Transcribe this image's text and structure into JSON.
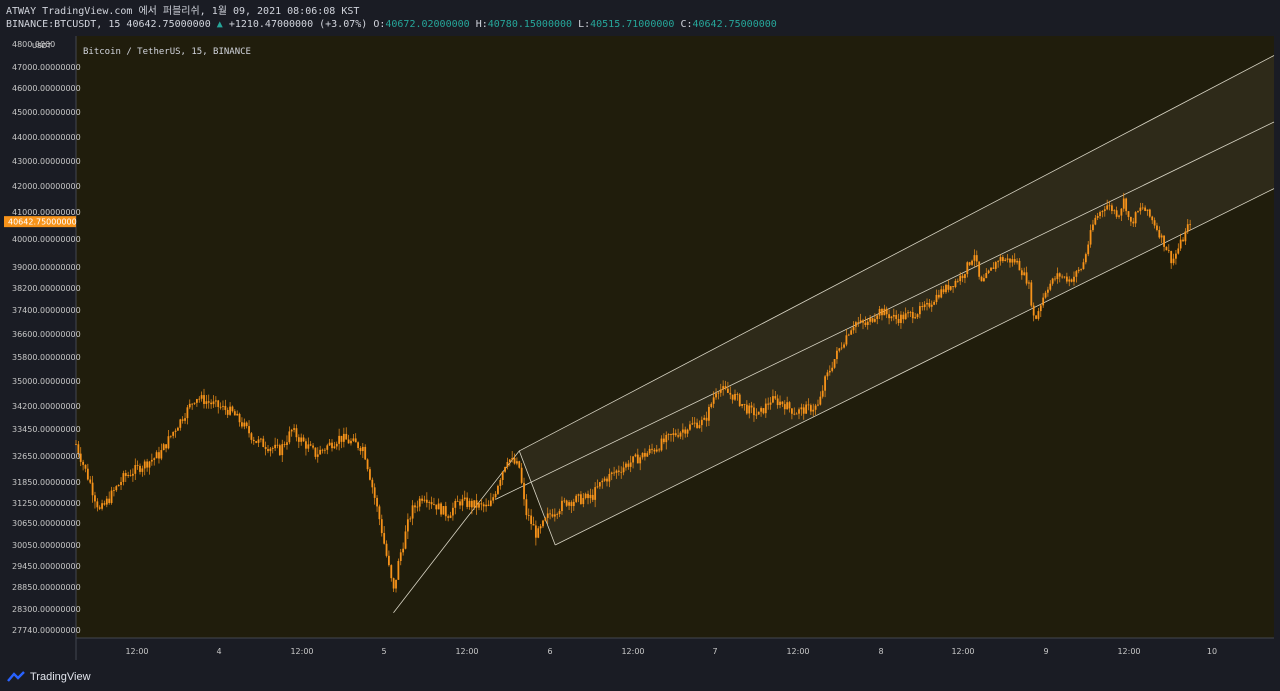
{
  "header": {
    "line1": "ATWAY TradingView.com 에서 퍼블리쉬, 1월 09, 2021 08:06:08 KST",
    "symbol": "BINANCE:BTCUSDT, 15",
    "last": "40642.75000000",
    "change_arrow": "▲",
    "change": "+1210.47000000 (+3.07%)",
    "o_label": "O:",
    "o": "40672.02000000",
    "h_label": "H:",
    "h": "40780.15000000",
    "l_label": "L:",
    "l": "40515.71000000",
    "c_label": "C:",
    "c": "40642.75000000"
  },
  "chart_title": "Bitcoin / TetherUS, 15, BINANCE",
  "footer": {
    "brand": "TradingView"
  },
  "colors": {
    "background": "#201d0c",
    "candle": "#f7931a",
    "channel_line": "#d8d4c4",
    "channel_fill": "#3a3524",
    "price_label_bg": "#f7931a"
  },
  "chart_data": {
    "type": "candlestick",
    "title": "Bitcoin / TetherUS, 15, BINANCE",
    "y_axis_unit": "USDT",
    "y_ticks": [
      "4800 0000",
      "47000.00000000",
      "46000.00000000",
      "45000.00000000",
      "44000.00000000",
      "43000.00000000",
      "42000.00000000",
      "41000.00000000",
      "40000.00000000",
      "39000.00000000",
      "38200.00000000",
      "37400.00000000",
      "36600.00000000",
      "35800.00000000",
      "35000.00000000",
      "34200.00000000",
      "33450.00000000",
      "32650.00000000",
      "31850.00000000",
      "31250.00000000",
      "30650.00000000",
      "30050.00000000",
      "29450.00000000",
      "28850.00000000",
      "28300.00000000",
      "27740.00000000"
    ],
    "x_ticks": [
      "12:00",
      "4",
      "12:00",
      "5",
      "12:00",
      "6",
      "12:00",
      "7",
      "12:00",
      "8",
      "12:00",
      "9",
      "12:00",
      "10"
    ],
    "current_price_label": "40642.75000000",
    "price_path": [
      {
        "t": 0.0,
        "p": 33000
      },
      {
        "t": 0.02,
        "p": 31000
      },
      {
        "t": 0.04,
        "p": 32000
      },
      {
        "t": 0.07,
        "p": 32700
      },
      {
        "t": 0.09,
        "p": 33900
      },
      {
        "t": 0.1,
        "p": 34500
      },
      {
        "t": 0.13,
        "p": 34000
      },
      {
        "t": 0.15,
        "p": 33100
      },
      {
        "t": 0.17,
        "p": 32800
      },
      {
        "t": 0.18,
        "p": 33400
      },
      {
        "t": 0.2,
        "p": 32700
      },
      {
        "t": 0.22,
        "p": 33200
      },
      {
        "t": 0.24,
        "p": 32900
      },
      {
        "t": 0.255,
        "p": 30500
      },
      {
        "t": 0.265,
        "p": 28700
      },
      {
        "t": 0.27,
        "p": 29700
      },
      {
        "t": 0.28,
        "p": 31000
      },
      {
        "t": 0.29,
        "p": 31500
      },
      {
        "t": 0.31,
        "p": 30900
      },
      {
        "t": 0.32,
        "p": 31300
      },
      {
        "t": 0.33,
        "p": 31200
      },
      {
        "t": 0.345,
        "p": 31100
      },
      {
        "t": 0.36,
        "p": 32600
      },
      {
        "t": 0.37,
        "p": 32300
      },
      {
        "t": 0.375,
        "p": 31000
      },
      {
        "t": 0.385,
        "p": 30300
      },
      {
        "t": 0.395,
        "p": 30900
      },
      {
        "t": 0.41,
        "p": 31300
      },
      {
        "t": 0.43,
        "p": 31400
      },
      {
        "t": 0.44,
        "p": 31900
      },
      {
        "t": 0.46,
        "p": 32400
      },
      {
        "t": 0.48,
        "p": 32800
      },
      {
        "t": 0.5,
        "p": 33300
      },
      {
        "t": 0.515,
        "p": 33600
      },
      {
        "t": 0.525,
        "p": 33700
      },
      {
        "t": 0.535,
        "p": 34800
      },
      {
        "t": 0.55,
        "p": 34500
      },
      {
        "t": 0.56,
        "p": 34100
      },
      {
        "t": 0.57,
        "p": 33900
      },
      {
        "t": 0.58,
        "p": 34400
      },
      {
        "t": 0.59,
        "p": 34300
      },
      {
        "t": 0.6,
        "p": 34000
      },
      {
        "t": 0.62,
        "p": 34200
      },
      {
        "t": 0.625,
        "p": 35000
      },
      {
        "t": 0.635,
        "p": 35900
      },
      {
        "t": 0.645,
        "p": 36700
      },
      {
        "t": 0.65,
        "p": 37000
      },
      {
        "t": 0.66,
        "p": 36900
      },
      {
        "t": 0.67,
        "p": 37400
      },
      {
        "t": 0.685,
        "p": 37100
      },
      {
        "t": 0.7,
        "p": 37300
      },
      {
        "t": 0.71,
        "p": 37500
      },
      {
        "t": 0.72,
        "p": 38000
      },
      {
        "t": 0.73,
        "p": 38300
      },
      {
        "t": 0.74,
        "p": 38700
      },
      {
        "t": 0.75,
        "p": 39500
      },
      {
        "t": 0.755,
        "p": 38300
      },
      {
        "t": 0.77,
        "p": 39300
      },
      {
        "t": 0.785,
        "p": 39200
      },
      {
        "t": 0.795,
        "p": 38400
      },
      {
        "t": 0.8,
        "p": 37000
      },
      {
        "t": 0.81,
        "p": 38200
      },
      {
        "t": 0.82,
        "p": 38700
      },
      {
        "t": 0.83,
        "p": 38500
      },
      {
        "t": 0.84,
        "p": 39000
      },
      {
        "t": 0.85,
        "p": 40700
      },
      {
        "t": 0.86,
        "p": 41300
      },
      {
        "t": 0.87,
        "p": 40900
      },
      {
        "t": 0.875,
        "p": 41500
      },
      {
        "t": 0.88,
        "p": 40500
      },
      {
        "t": 0.885,
        "p": 40900
      },
      {
        "t": 0.89,
        "p": 41200
      },
      {
        "t": 0.9,
        "p": 40600
      },
      {
        "t": 0.91,
        "p": 39700
      },
      {
        "t": 0.915,
        "p": 39200
      },
      {
        "t": 0.925,
        "p": 40100
      },
      {
        "t": 0.93,
        "p": 40643
      }
    ],
    "channel": {
      "pivot_low": {
        "t": 0.265,
        "p": 28200
      },
      "pivot_low_2": {
        "t": 0.325,
        "p": 30750
      },
      "upper": [
        {
          "t": 0.37,
          "p": 32800
        },
        {
          "t": 1.0,
          "p": 47500
        }
      ],
      "middle": [
        {
          "t": 0.35,
          "p": 31350
        },
        {
          "t": 1.0,
          "p": 44600
        }
      ],
      "lower": [
        {
          "t": 0.4,
          "p": 30050
        },
        {
          "t": 1.0,
          "p": 41900
        }
      ],
      "zigzag": [
        {
          "t": 0.265,
          "p": 28200
        },
        {
          "t": 0.325,
          "p": 30750
        },
        {
          "t": 0.37,
          "p": 32800
        },
        {
          "t": 0.4,
          "p": 30050
        }
      ]
    }
  }
}
